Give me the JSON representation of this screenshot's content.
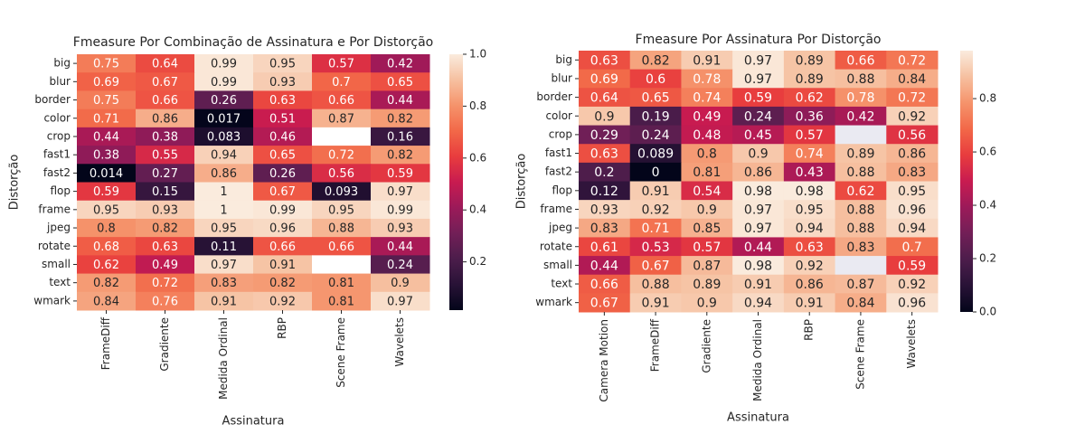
{
  "chart_data": [
    {
      "type": "heatmap",
      "title": "Fmeasure Por Combinação de Assinatura e Por Distorção",
      "x_label": "Assinatura",
      "y_label": "Distorção",
      "x_categories": [
        "FrameDiff",
        "Gradiente",
        "Medida Ordinal",
        "RBP",
        "Scene Frame",
        "Wavelets"
      ],
      "y_categories": [
        "big",
        "blur",
        "border",
        "color",
        "crop",
        "fast1",
        "fast2",
        "flop",
        "frame",
        "jpeg",
        "rotate",
        "small",
        "text",
        "wmark"
      ],
      "values": [
        [
          0.75,
          0.64,
          0.99,
          0.95,
          0.57,
          0.42
        ],
        [
          0.69,
          0.67,
          0.99,
          0.93,
          0.7,
          0.65
        ],
        [
          0.75,
          0.66,
          0.26,
          0.63,
          0.66,
          0.44
        ],
        [
          0.71,
          0.86,
          0.017,
          0.51,
          0.87,
          0.82
        ],
        [
          0.44,
          0.38,
          0.083,
          0.46,
          null,
          0.16
        ],
        [
          0.38,
          0.55,
          0.94,
          0.65,
          0.72,
          0.82
        ],
        [
          0.014,
          0.27,
          0.86,
          0.26,
          0.56,
          0.59
        ],
        [
          0.59,
          0.15,
          1,
          0.67,
          0.093,
          0.97
        ],
        [
          0.95,
          0.93,
          1,
          0.99,
          0.95,
          0.99
        ],
        [
          0.8,
          0.82,
          0.95,
          0.96,
          0.88,
          0.93
        ],
        [
          0.68,
          0.63,
          0.11,
          0.66,
          0.66,
          0.44
        ],
        [
          0.62,
          0.49,
          0.97,
          0.91,
          null,
          0.24
        ],
        [
          0.82,
          0.72,
          0.83,
          0.82,
          0.81,
          0.9
        ],
        [
          0.84,
          0.76,
          0.91,
          0.92,
          0.81,
          0.97
        ]
      ],
      "colormap": "rocket",
      "clim": [
        0.014,
        1
      ],
      "missing_color": "#ffffff",
      "cticks": [
        0.2,
        0.4,
        0.6,
        0.8,
        {
          "value": 1,
          "label": "1.0"
        }
      ]
    },
    {
      "type": "heatmap",
      "title": "Fmeasure Por Assinatura Por Distorção",
      "x_label": "Assinatura",
      "y_label": "Distorção",
      "x_categories": [
        "Camera Motion",
        "FrameDiff",
        "Gradiente",
        "Medida Ordinal",
        "RBP",
        "Scene Frame",
        "Wavelets"
      ],
      "y_categories": [
        "big",
        "blur",
        "border",
        "color",
        "crop",
        "fast1",
        "fast2",
        "flop",
        "frame",
        "jpeg",
        "rotate",
        "small",
        "text",
        "wmark"
      ],
      "values": [
        [
          0.63,
          0.82,
          0.91,
          0.97,
          0.89,
          0.66,
          0.72
        ],
        [
          0.69,
          0.6,
          0.78,
          0.97,
          0.89,
          0.88,
          0.84
        ],
        [
          0.64,
          0.65,
          0.74,
          0.59,
          0.62,
          0.78,
          0.72
        ],
        [
          0.9,
          0.19,
          0.49,
          0.24,
          0.36,
          0.42,
          0.92
        ],
        [
          0.29,
          0.24,
          0.48,
          0.45,
          0.57,
          null,
          0.56
        ],
        [
          0.63,
          0.089,
          0.8,
          0.9,
          0.74,
          0.89,
          0.86
        ],
        [
          0.2,
          0,
          0.81,
          0.86,
          0.43,
          0.88,
          0.83
        ],
        [
          0.12,
          0.91,
          0.54,
          0.98,
          0.98,
          0.62,
          0.95
        ],
        [
          0.93,
          0.92,
          0.9,
          0.97,
          0.95,
          0.88,
          0.96
        ],
        [
          0.83,
          0.71,
          0.85,
          0.97,
          0.94,
          0.88,
          0.94
        ],
        [
          0.61,
          0.53,
          0.57,
          0.44,
          0.63,
          0.83,
          0.7
        ],
        [
          0.44,
          0.67,
          0.87,
          0.98,
          0.92,
          null,
          0.59
        ],
        [
          0.66,
          0.88,
          0.89,
          0.91,
          0.86,
          0.87,
          0.92
        ],
        [
          0.67,
          0.91,
          0.9,
          0.94,
          0.91,
          0.84,
          0.96
        ]
      ],
      "colormap": "rocket",
      "clim": [
        0,
        0.98
      ],
      "missing_color": "#eaeaf2",
      "cticks": [
        {
          "value": 0,
          "label": "0.0"
        },
        0.2,
        0.4,
        0.6,
        0.8
      ]
    }
  ]
}
